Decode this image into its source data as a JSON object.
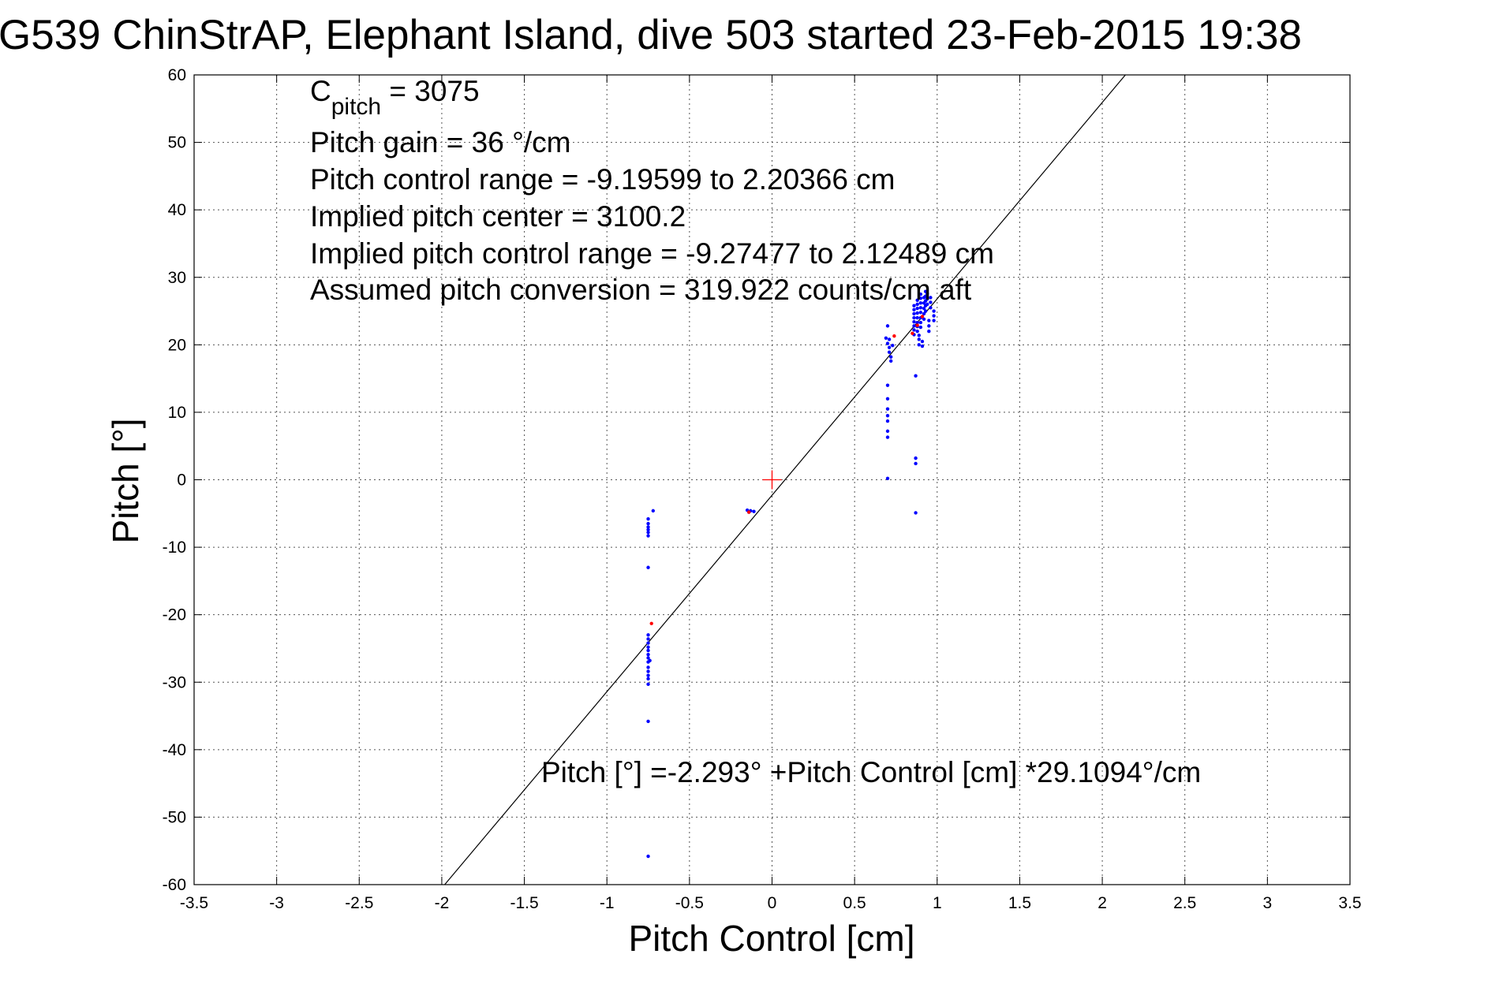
{
  "chart_data": {
    "type": "scatter",
    "title": "G539 ChinStrAP, Elephant Island, dive 503 started 23-Feb-2015 19:38",
    "xlabel": "Pitch Control [cm]",
    "ylabel": "Pitch [°]",
    "xlim": [
      -3.5,
      3.5
    ],
    "ylim": [
      -60,
      60
    ],
    "x_ticks": [
      -3.5,
      -3,
      -2.5,
      -2,
      -1.5,
      -1,
      -0.5,
      0,
      0.5,
      1,
      1.5,
      2,
      2.5,
      3,
      3.5
    ],
    "x_tick_labels": [
      "-3.5",
      "-3",
      "-2.5",
      "-2",
      "-1.5",
      "-1",
      "-0.5",
      "0",
      "0.5",
      "1",
      "1.5",
      "2",
      "2.5",
      "3",
      "3.5"
    ],
    "y_ticks": [
      -60,
      -50,
      -40,
      -30,
      -20,
      -10,
      0,
      10,
      20,
      30,
      40,
      50,
      60
    ],
    "y_tick_labels": [
      "-60",
      "-50",
      "-40",
      "-30",
      "-20",
      "-10",
      "0",
      "10",
      "20",
      "30",
      "40",
      "50",
      "60"
    ],
    "grid": true,
    "annotations": {
      "c_pitch_main": "C",
      "c_pitch_sub": "pitch",
      "c_pitch_value": " = 3075",
      "pitch_gain": "Pitch gain = 36 °/cm",
      "pitch_control_range": "Pitch control range = -9.19599 to 2.20366 cm",
      "implied_center": "Implied pitch center = 3100.2",
      "implied_range": "Implied pitch control range = -9.27477 to 2.12489 cm",
      "assumed_conversion": "Assumed pitch conversion = 319.922 counts/cm aft",
      "fit_equation": "Pitch [°] =-2.293° +Pitch Control [cm] *29.1094°/cm"
    },
    "fit_line": {
      "intercept": -2.293,
      "slope": 29.1094,
      "color": "#000000"
    },
    "center_marker": {
      "x": 0,
      "y": 0,
      "color": "#ff0000"
    },
    "series": [
      {
        "color": "#0000ff",
        "points": [
          [
            -0.75,
            -5.8
          ],
          [
            -0.75,
            -6.5
          ],
          [
            -0.75,
            -7.0
          ],
          [
            -0.75,
            -7.4
          ],
          [
            -0.75,
            -7.8
          ],
          [
            -0.75,
            -8.3
          ],
          [
            -0.72,
            -4.6
          ],
          [
            -0.75,
            -13.0
          ],
          [
            -0.75,
            -23.0
          ],
          [
            -0.75,
            -23.6
          ],
          [
            -0.75,
            -24.2
          ],
          [
            -0.75,
            -24.8
          ],
          [
            -0.75,
            -25.3
          ],
          [
            -0.75,
            -25.9
          ],
          [
            -0.75,
            -26.4
          ],
          [
            -0.75,
            -27.0
          ],
          [
            -0.75,
            -27.8
          ],
          [
            -0.75,
            -28.4
          ],
          [
            -0.75,
            -29.0
          ],
          [
            -0.75,
            -29.5
          ],
          [
            -0.75,
            -30.3
          ],
          [
            -0.74,
            -26.8
          ],
          [
            -0.75,
            -35.8
          ],
          [
            -0.75,
            -55.8
          ],
          [
            -0.15,
            -4.5
          ],
          [
            -0.14,
            -4.8
          ],
          [
            -0.13,
            -4.6
          ],
          [
            -0.11,
            -4.7
          ],
          [
            0.7,
            22.8
          ],
          [
            0.69,
            21.0
          ],
          [
            0.7,
            20.2
          ],
          [
            0.71,
            19.6
          ],
          [
            0.71,
            18.9
          ],
          [
            0.72,
            18.2
          ],
          [
            0.72,
            17.6
          ],
          [
            0.71,
            20.8
          ],
          [
            0.73,
            19.9
          ],
          [
            0.7,
            14.0
          ],
          [
            0.7,
            12.0
          ],
          [
            0.7,
            10.5
          ],
          [
            0.7,
            9.5
          ],
          [
            0.7,
            8.7
          ],
          [
            0.7,
            7.2
          ],
          [
            0.7,
            6.3
          ],
          [
            0.7,
            0.2
          ],
          [
            0.86,
            21.5
          ],
          [
            0.86,
            22.2
          ],
          [
            0.86,
            22.8
          ],
          [
            0.86,
            23.4
          ],
          [
            0.86,
            24.0
          ],
          [
            0.86,
            24.6
          ],
          [
            0.86,
            25.2
          ],
          [
            0.86,
            25.8
          ],
          [
            0.88,
            22.0
          ],
          [
            0.88,
            22.7
          ],
          [
            0.88,
            23.3
          ],
          [
            0.88,
            24.0
          ],
          [
            0.88,
            24.7
          ],
          [
            0.88,
            25.4
          ],
          [
            0.88,
            26.0
          ],
          [
            0.88,
            26.6
          ],
          [
            0.89,
            20.0
          ],
          [
            0.89,
            20.8
          ],
          [
            0.89,
            21.4
          ],
          [
            0.9,
            22.6
          ],
          [
            0.9,
            23.3
          ],
          [
            0.9,
            24.0
          ],
          [
            0.9,
            24.8
          ],
          [
            0.9,
            25.5
          ],
          [
            0.9,
            26.2
          ],
          [
            0.9,
            26.9
          ],
          [
            0.9,
            27.5
          ],
          [
            0.91,
            19.8
          ],
          [
            0.91,
            20.5
          ],
          [
            0.92,
            23.8
          ],
          [
            0.92,
            24.6
          ],
          [
            0.92,
            25.4
          ],
          [
            0.92,
            26.2
          ],
          [
            0.92,
            27.0
          ],
          [
            0.93,
            25.0
          ],
          [
            0.93,
            25.8
          ],
          [
            0.93,
            26.5
          ],
          [
            0.93,
            27.2
          ],
          [
            0.93,
            27.9
          ],
          [
            0.94,
            26.0
          ],
          [
            0.94,
            26.8
          ],
          [
            0.94,
            27.6
          ],
          [
            0.95,
            22.0
          ],
          [
            0.95,
            22.8
          ],
          [
            0.95,
            23.6
          ],
          [
            0.96,
            25.5
          ],
          [
            0.96,
            26.3
          ],
          [
            0.96,
            27.0
          ],
          [
            0.98,
            23.6
          ],
          [
            0.98,
            24.3
          ],
          [
            0.98,
            25.0
          ],
          [
            0.87,
            15.4
          ],
          [
            0.87,
            3.2
          ],
          [
            0.87,
            2.4
          ],
          [
            0.87,
            -4.9
          ]
        ]
      },
      {
        "color": "#ff0000",
        "points": [
          [
            -0.73,
            -21.3
          ],
          [
            -0.14,
            -4.8
          ],
          [
            0.74,
            21.3
          ],
          [
            0.85,
            21.7
          ],
          [
            0.88,
            22.9
          ],
          [
            0.91,
            24.2
          ]
        ]
      }
    ]
  }
}
